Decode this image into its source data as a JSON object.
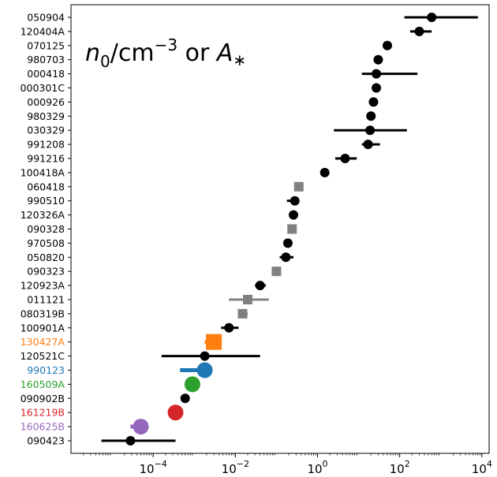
{
  "chart_data": {
    "type": "scatter",
    "title": "",
    "xlabel": "",
    "ylabel": "",
    "x_scale": "log",
    "xlim": [
      1e-06,
      15000.0
    ],
    "xticks": [
      {
        "value": 0.0001,
        "base": "10",
        "exp": "−4"
      },
      {
        "value": 0.01,
        "base": "10",
        "exp": "−2"
      },
      {
        "value": 1,
        "base": "10",
        "exp": "0"
      },
      {
        "value": 100,
        "base": "10",
        "exp": "2"
      },
      {
        "value": 10000,
        "base": "10",
        "exp": "4"
      }
    ],
    "annotation": {
      "n": "n",
      "sub0": "0",
      "slash_cm": "/cm",
      "exp": "−3",
      "or": " or ",
      "A": "A",
      "star": "∗"
    },
    "grid": false,
    "colors": {
      "black": "#000000",
      "gray": "#808080",
      "orange": "#ff7f0e",
      "blue": "#1f77b4",
      "green": "#2ca02c",
      "red": "#d62728",
      "purple": "#9467bd"
    },
    "points": [
      {
        "label": "050904",
        "x": 600,
        "xlo": 130,
        "xhi": 8000,
        "marker": "circle",
        "color": "black"
      },
      {
        "label": "120404A",
        "x": 300,
        "xlo": 180,
        "xhi": 600,
        "marker": "circle",
        "color": "black"
      },
      {
        "label": "070125",
        "x": 50,
        "xlo": null,
        "xhi": null,
        "marker": "circle",
        "color": "black"
      },
      {
        "label": "980703",
        "x": 30,
        "xlo": null,
        "xhi": null,
        "marker": "circle",
        "color": "black"
      },
      {
        "label": "000418",
        "x": 27,
        "xlo": 12,
        "xhi": 270,
        "marker": "circle",
        "color": "black"
      },
      {
        "label": "000301C",
        "x": 27,
        "xlo": null,
        "xhi": null,
        "marker": "circle",
        "color": "black"
      },
      {
        "label": "000926",
        "x": 23,
        "xlo": null,
        "xhi": null,
        "marker": "circle",
        "color": "black"
      },
      {
        "label": "980329",
        "x": 20,
        "xlo": null,
        "xhi": null,
        "marker": "circle",
        "color": "black"
      },
      {
        "label": "030329",
        "x": 19,
        "xlo": 2.5,
        "xhi": 150,
        "marker": "circle",
        "color": "black"
      },
      {
        "label": "991208",
        "x": 17,
        "xlo": 12,
        "xhi": 33,
        "marker": "circle",
        "color": "black"
      },
      {
        "label": "991216",
        "x": 4.7,
        "xlo": 2.7,
        "xhi": 9,
        "marker": "circle",
        "color": "black"
      },
      {
        "label": "100418A",
        "x": 1.5,
        "xlo": null,
        "xhi": null,
        "marker": "circle",
        "color": "black"
      },
      {
        "label": "060418",
        "x": 0.35,
        "xlo": 0.27,
        "xhi": 0.42,
        "marker": "square",
        "color": "gray"
      },
      {
        "label": "990510",
        "x": 0.28,
        "xlo": 0.18,
        "xhi": 0.36,
        "marker": "circle",
        "color": "black"
      },
      {
        "label": "120326A",
        "x": 0.26,
        "xlo": null,
        "xhi": null,
        "marker": "circle",
        "color": "black"
      },
      {
        "label": "090328",
        "x": 0.24,
        "xlo": 0.2,
        "xhi": 0.3,
        "marker": "square",
        "color": "gray"
      },
      {
        "label": "970508",
        "x": 0.19,
        "xlo": null,
        "xhi": null,
        "marker": "circle",
        "color": "black"
      },
      {
        "label": "050820",
        "x": 0.17,
        "xlo": 0.12,
        "xhi": 0.26,
        "marker": "circle",
        "color": "black"
      },
      {
        "label": "090323",
        "x": 0.1,
        "xlo": null,
        "xhi": null,
        "marker": "square",
        "color": "gray"
      },
      {
        "label": "120923A",
        "x": 0.04,
        "xlo": 0.03,
        "xhi": 0.055,
        "marker": "circle",
        "color": "black"
      },
      {
        "label": "011121",
        "x": 0.02,
        "xlo": 0.007,
        "xhi": 0.065,
        "marker": "square",
        "color": "gray"
      },
      {
        "label": "080319B",
        "x": 0.015,
        "xlo": 0.012,
        "xhi": 0.02,
        "marker": "square",
        "color": "gray"
      },
      {
        "label": "100901A",
        "x": 0.007,
        "xlo": 0.0045,
        "xhi": 0.012,
        "marker": "circle",
        "color": "black"
      },
      {
        "label": "130427A",
        "x": 0.003,
        "xlo": 0.0018,
        "xhi": 0.0045,
        "marker": "square",
        "color": "orange",
        "size": "large"
      },
      {
        "label": "120521C",
        "x": 0.0018,
        "xlo": 0.00016,
        "xhi": 0.04,
        "marker": "circle",
        "color": "black"
      },
      {
        "label": "990123",
        "x": 0.0018,
        "xlo": 0.00045,
        "xhi": 0.0018,
        "marker": "circle",
        "color": "blue",
        "size": "large"
      },
      {
        "label": "160509A",
        "x": 0.0009,
        "xlo": null,
        "xhi": null,
        "marker": "circle",
        "color": "green",
        "size": "large"
      },
      {
        "label": "090902B",
        "x": 0.0006,
        "xlo": null,
        "xhi": null,
        "marker": "circle",
        "color": "black"
      },
      {
        "label": "161219B",
        "x": 0.00035,
        "xlo": null,
        "xhi": null,
        "marker": "circle",
        "color": "red",
        "size": "large"
      },
      {
        "label": "160625B",
        "x": 5e-05,
        "xlo": 2.8e-05,
        "xhi": 5e-05,
        "marker": "circle",
        "color": "purple",
        "size": "large"
      },
      {
        "label": "090423",
        "x": 2.8e-05,
        "xlo": 5.5e-06,
        "xhi": 0.00035,
        "marker": "circle",
        "color": "black"
      }
    ]
  }
}
